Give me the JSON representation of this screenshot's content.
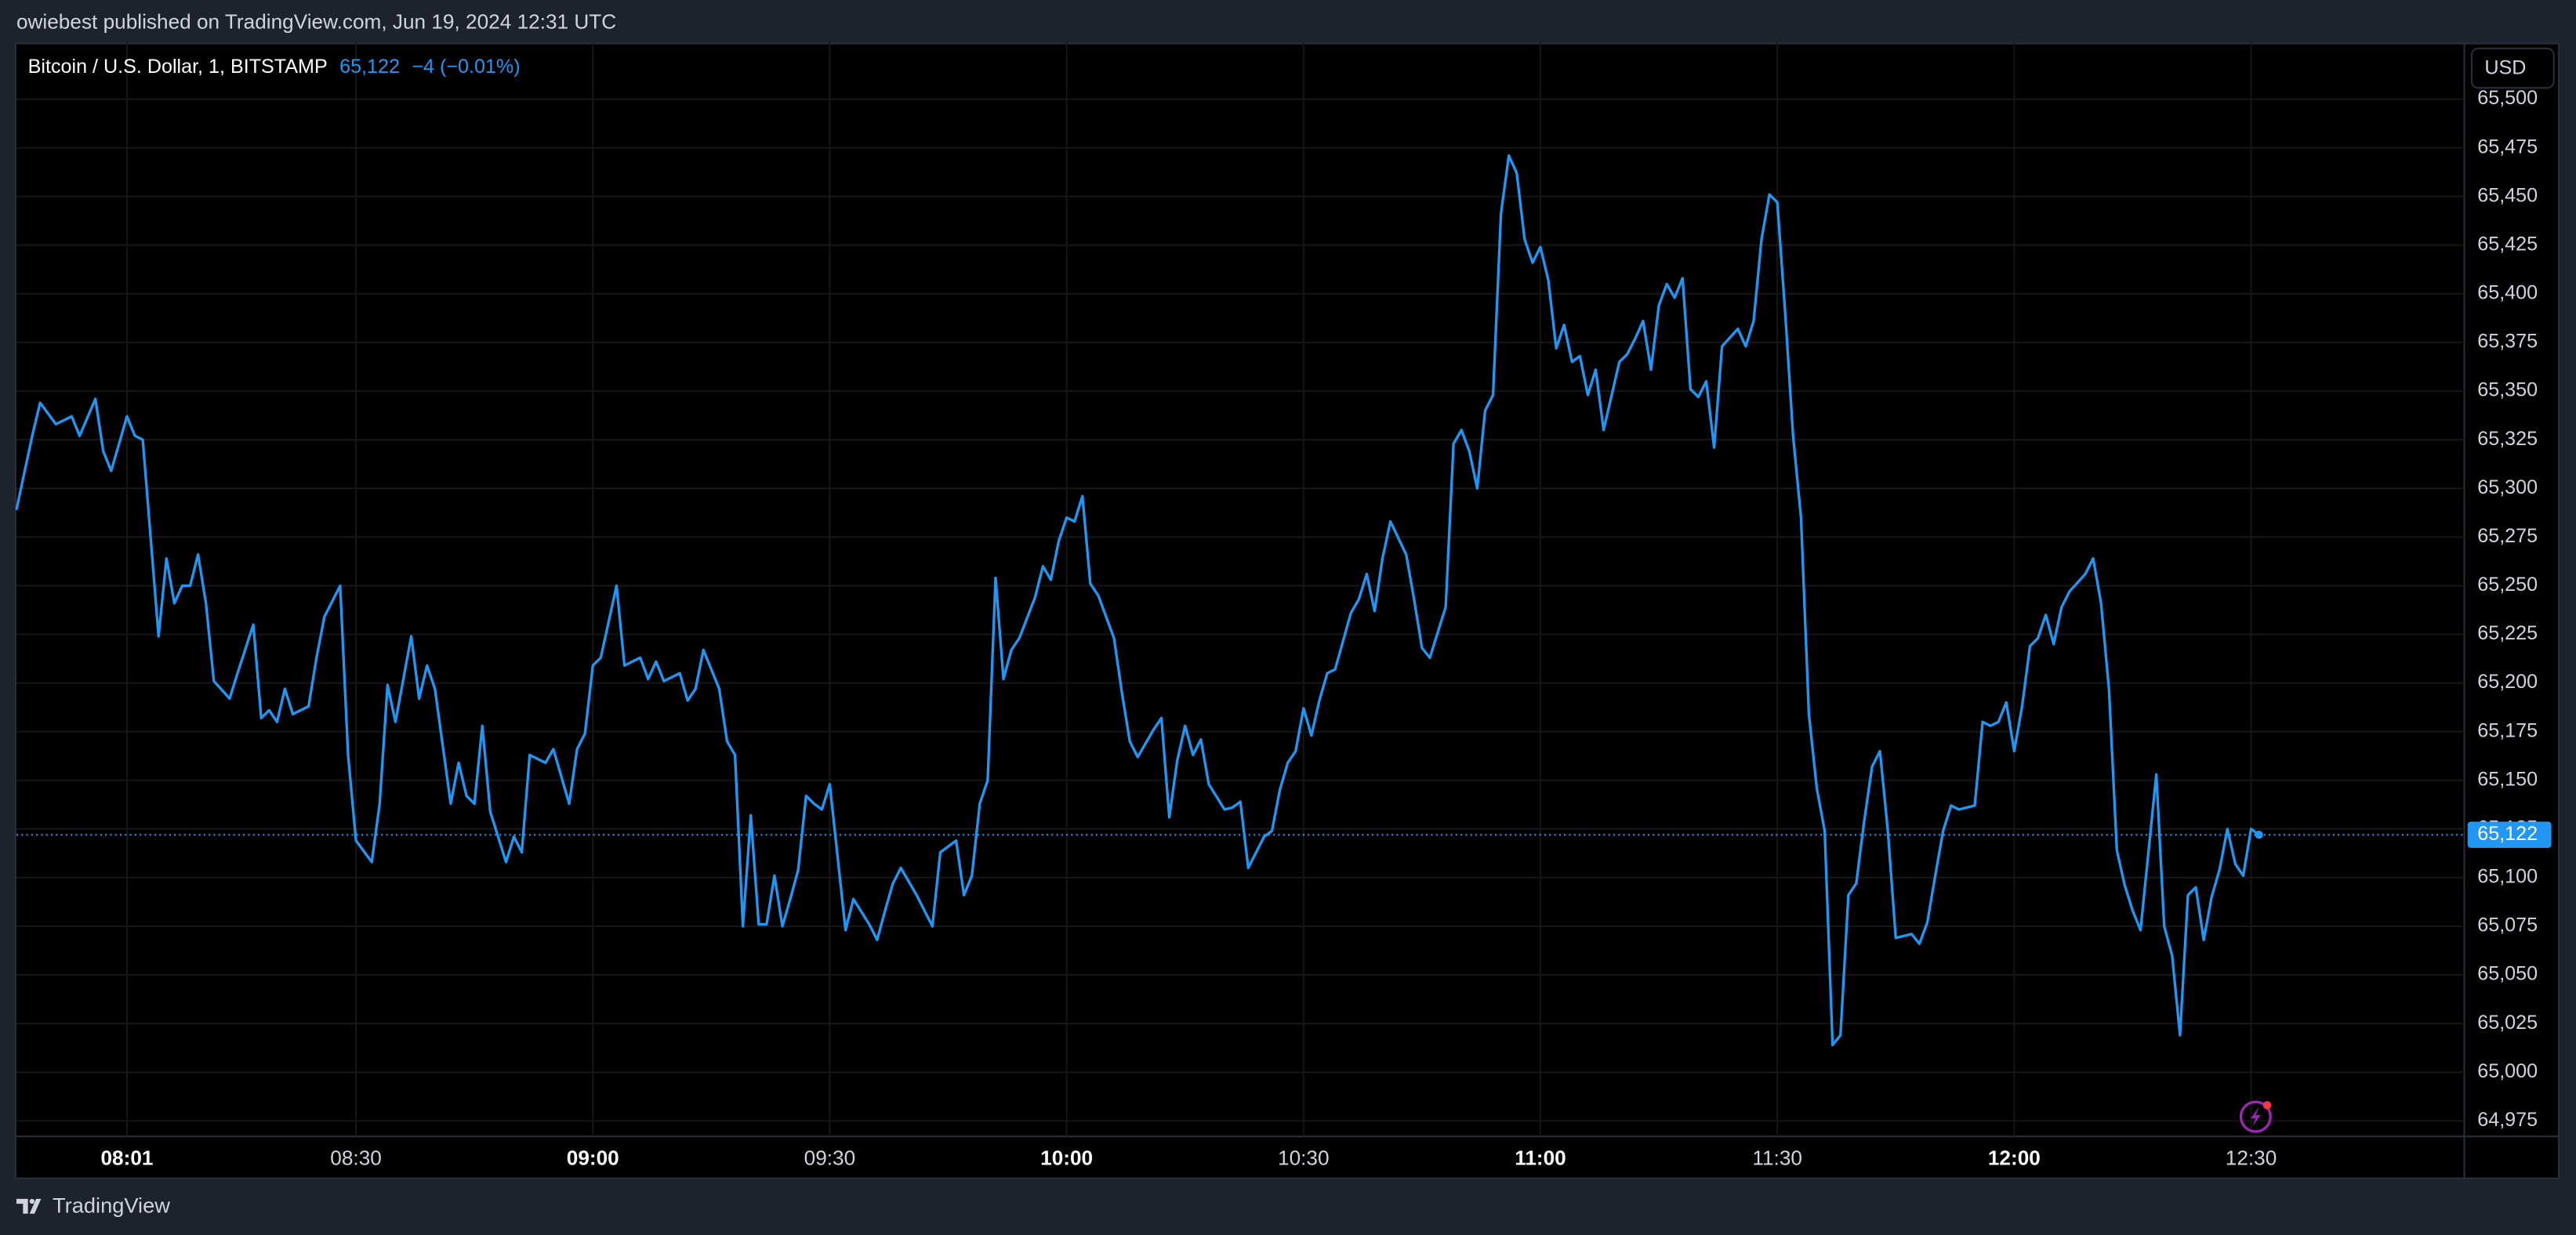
{
  "header": {
    "publish_line": "owiebest published on TradingView.com, Jun 19, 2024 12:31 UTC"
  },
  "footer": {
    "brand": "TradingView"
  },
  "chart_data": {
    "type": "line",
    "title": "Bitcoin / U.S. Dollar, 1, BITSTAMP",
    "last_price": {
      "value": 65122,
      "label": "65,122"
    },
    "change": "−4 (−0.01%)",
    "currency": "USD",
    "color": "#2196f3",
    "grid": true,
    "xlim": [
      "07:47",
      "12:57"
    ],
    "xticks": [
      "08:01",
      "08:30",
      "09:00",
      "09:30",
      "10:00",
      "10:30",
      "11:00",
      "11:30",
      "12:00",
      "12:30"
    ],
    "ylim": [
      64967,
      65529
    ],
    "yticks": [
      {
        "value": 64975,
        "label": "64,975"
      },
      {
        "value": 65000,
        "label": "65,000"
      },
      {
        "value": 65025,
        "label": "65,025"
      },
      {
        "value": 65050,
        "label": "65,050"
      },
      {
        "value": 65075,
        "label": "65,075"
      },
      {
        "value": 65100,
        "label": "65,100"
      },
      {
        "value": 65125,
        "label": "65,125"
      },
      {
        "value": 65150,
        "label": "65,150"
      },
      {
        "value": 65175,
        "label": "65,175"
      },
      {
        "value": 65200,
        "label": "65,200"
      },
      {
        "value": 65225,
        "label": "65,225"
      },
      {
        "value": 65250,
        "label": "65,250"
      },
      {
        "value": 65275,
        "label": "65,275"
      },
      {
        "value": 65300,
        "label": "65,300"
      },
      {
        "value": 65325,
        "label": "65,325"
      },
      {
        "value": 65350,
        "label": "65,350"
      },
      {
        "value": 65375,
        "label": "65,375"
      },
      {
        "value": 65400,
        "label": "65,400"
      },
      {
        "value": 65425,
        "label": "65,425"
      },
      {
        "value": 65450,
        "label": "65,450"
      },
      {
        "value": 65475,
        "label": "65,475"
      },
      {
        "value": 65500,
        "label": "65,500"
      }
    ],
    "x": [
      "07:47",
      "07:49",
      "07:50",
      "07:52",
      "07:54",
      "07:55",
      "07:57",
      "07:58",
      "07:59",
      "08:01",
      "08:02",
      "08:03",
      "08:05",
      "08:06",
      "08:07",
      "08:08",
      "08:09",
      "08:10",
      "08:11",
      "08:12",
      "08:14",
      "08:15",
      "08:17",
      "08:18",
      "08:19",
      "08:20",
      "08:21",
      "08:22",
      "08:24",
      "08:25",
      "08:26",
      "08:28",
      "08:29",
      "08:30",
      "08:32",
      "08:33",
      "08:34",
      "08:35",
      "08:37",
      "08:38",
      "08:39",
      "08:40",
      "08:42",
      "08:43",
      "08:44",
      "08:45",
      "08:46",
      "08:47",
      "08:49",
      "08:50",
      "08:51",
      "08:52",
      "08:54",
      "08:55",
      "08:57",
      "08:58",
      "08:59",
      "09:00",
      "09:01",
      "09:03",
      "09:04",
      "09:06",
      "09:07",
      "09:08",
      "09:09",
      "09:11",
      "09:12",
      "09:13",
      "09:14",
      "09:16",
      "09:17",
      "09:18",
      "09:19",
      "09:20",
      "09:21",
      "09:22",
      "09:23",
      "09:24",
      "09:25",
      "09:26",
      "09:27",
      "09:28",
      "09:29",
      "09:30",
      "09:32",
      "09:33",
      "09:35",
      "09:36",
      "09:37",
      "09:38",
      "09:39",
      "09:41",
      "09:43",
      "09:44",
      "09:46",
      "09:47",
      "09:48",
      "09:49",
      "09:50",
      "09:51",
      "09:52",
      "09:53",
      "09:54",
      "09:56",
      "09:57",
      "09:58",
      "09:59",
      "10:00",
      "10:01",
      "10:02",
      "10:03",
      "10:04",
      "10:06",
      "10:07",
      "10:08",
      "10:09",
      "10:11",
      "10:12",
      "10:13",
      "10:14",
      "10:15",
      "10:16",
      "10:17",
      "10:18",
      "10:20",
      "10:21",
      "10:22",
      "10:23",
      "10:25",
      "10:26",
      "10:27",
      "10:28",
      "10:29",
      "10:30",
      "10:31",
      "10:32",
      "10:33",
      "10:34",
      "10:36",
      "10:37",
      "10:38",
      "10:39",
      "10:40",
      "10:41",
      "10:43",
      "10:44",
      "10:45",
      "10:46",
      "10:48",
      "10:49",
      "10:50",
      "10:51",
      "10:52",
      "10:53",
      "10:54",
      "10:55",
      "10:56",
      "10:57",
      "10:58",
      "10:59",
      "11:00",
      "11:01",
      "11:02",
      "11:03",
      "11:04",
      "11:05",
      "11:06",
      "11:07",
      "11:08",
      "11:10",
      "11:11",
      "11:12",
      "11:13",
      "11:14",
      "11:15",
      "11:16",
      "11:17",
      "11:18",
      "11:19",
      "11:20",
      "11:21",
      "11:22",
      "11:23",
      "11:25",
      "11:26",
      "11:27",
      "11:28",
      "11:29",
      "11:30",
      "11:31",
      "11:32",
      "11:33",
      "11:34",
      "11:35",
      "11:36",
      "11:37",
      "11:38",
      "11:39",
      "11:40",
      "11:41",
      "11:42",
      "11:43",
      "11:44",
      "11:45",
      "11:47",
      "11:48",
      "11:49",
      "11:50",
      "11:51",
      "11:52",
      "11:53",
      "11:55",
      "11:56",
      "11:57",
      "11:58",
      "11:59",
      "12:00",
      "12:01",
      "12:02",
      "12:03",
      "12:04",
      "12:05",
      "12:06",
      "12:07",
      "12:09",
      "12:10",
      "12:11",
      "12:12",
      "12:13",
      "12:14",
      "12:15",
      "12:16",
      "12:17",
      "12:18",
      "12:19",
      "12:20",
      "12:21",
      "12:22",
      "12:23",
      "12:24",
      "12:25",
      "12:26",
      "12:27",
      "12:28",
      "12:29",
      "12:30",
      "12:31"
    ],
    "values": [
      65289,
      65327,
      65344,
      65333,
      65337,
      65327,
      65346,
      65319,
      65309,
      65337,
      65327,
      65325,
      65224,
      65264,
      65241,
      65250,
      65250,
      65266,
      65241,
      65201,
      65192,
      65205,
      65230,
      65182,
      65186,
      65180,
      65197,
      65184,
      65188,
      65213,
      65234,
      65250,
      65163,
      65119,
      65108,
      65138,
      65199,
      65180,
      65224,
      65192,
      65209,
      65197,
      65138,
      65159,
      65142,
      65138,
      65178,
      65134,
      65108,
      65121,
      65113,
      65163,
      65159,
      65166,
      65138,
      65166,
      65174,
      65209,
      65213,
      65250,
      65209,
      65213,
      65202,
      65211,
      65201,
      65205,
      65191,
      65197,
      65217,
      65197,
      65170,
      65163,
      65075,
      65132,
      65076,
      65076,
      65101,
      65075,
      65089,
      65104,
      65142,
      65138,
      65135,
      65148,
      65073,
      65089,
      65076,
      65068,
      65083,
      65097,
      65105,
      65091,
      65075,
      65113,
      65119,
      65091,
      65101,
      65138,
      65150,
      65254,
      65202,
      65217,
      65223,
      65244,
      65260,
      65253,
      65273,
      65285,
      65283,
      65296,
      65251,
      65245,
      65223,
      65195,
      65170,
      65162,
      65176,
      65182,
      65131,
      65160,
      65178,
      65163,
      65171,
      65148,
      65135,
      65136,
      65139,
      65105,
      65121,
      65124,
      65145,
      65159,
      65165,
      65187,
      65173,
      65191,
      65205,
      65207,
      65236,
      65243,
      65256,
      65237,
      65264,
      65283,
      65266,
      65243,
      65218,
      65213,
      65239,
      65323,
      65330,
      65319,
      65300,
      65340,
      65348,
      65441,
      65471,
      65462,
      65428,
      65416,
      65424,
      65407,
      65372,
      65384,
      65365,
      65368,
      65348,
      65361,
      65330,
      65365,
      65369,
      65377,
      65386,
      65361,
      65394,
      65405,
      65398,
      65408,
      65351,
      65347,
      65355,
      65321,
      65373,
      65382,
      65373,
      65386,
      65428,
      65451,
      65447,
      65390,
      65327,
      65285,
      65184,
      65146,
      65124,
      65014,
      65019,
      65091,
      65097,
      65129,
      65157,
      65165,
      65124,
      65069,
      65071,
      65066,
      65077,
      65101,
      65124,
      65137,
      65135,
      65137,
      65180,
      65178,
      65180,
      65190,
      65165,
      65188,
      65219,
      65223,
      65235,
      65220,
      65239,
      65247,
      65256,
      65264,
      65241,
      65197,
      65114,
      65096,
      65083,
      65073,
      65113,
      65153,
      65075,
      65060,
      65019,
      65091,
      65095,
      65068,
      65090,
      65104,
      65125,
      65107,
      65101,
      65125,
      65122
    ]
  }
}
